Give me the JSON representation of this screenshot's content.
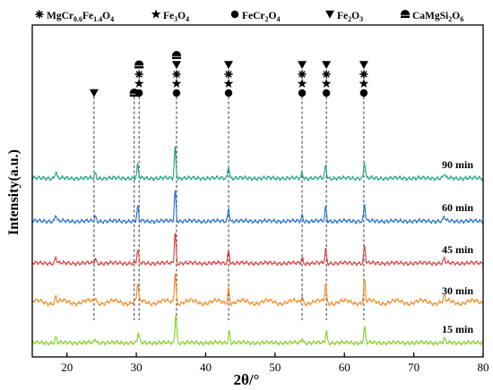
{
  "chart_data": {
    "type": "line",
    "xlabel": "2θ/°",
    "ylabel": "Intensity(a.u.)",
    "xlim": [
      15,
      80
    ],
    "xticks": [
      20,
      30,
      40,
      50,
      60,
      70,
      80
    ],
    "grid": false,
    "y_tick_labels": false,
    "legend": {
      "placement": "top",
      "entries": [
        {
          "symbol": "asterisk",
          "label": "MgCr0.6Fe1.4O4",
          "parts": [
            [
              "MgCr",
              ""
            ],
            [
              "0.6",
              "sub"
            ],
            [
              "Fe",
              ""
            ],
            [
              "1.4",
              "sub"
            ],
            [
              "O",
              ""
            ],
            [
              "4",
              "sub"
            ]
          ]
        },
        {
          "symbol": "star",
          "label": "Fe3O4",
          "parts": [
            [
              "Fe",
              ""
            ],
            [
              "3",
              "sub"
            ],
            [
              "O",
              ""
            ],
            [
              "4",
              "sub"
            ]
          ]
        },
        {
          "symbol": "circle",
          "label": "FeCr2O4",
          "parts": [
            [
              "FeCr",
              ""
            ],
            [
              "2",
              "sub"
            ],
            [
              "O",
              ""
            ],
            [
              "4",
              "sub"
            ]
          ]
        },
        {
          "symbol": "triangle-down",
          "label": "Fe2O3",
          "parts": [
            [
              "Fe",
              ""
            ],
            [
              "2",
              "sub"
            ],
            [
              "O",
              ""
            ],
            [
              "3",
              "sub"
            ]
          ]
        },
        {
          "symbol": "dome",
          "label": "CaMgSi2O6",
          "parts": [
            [
              "CaMgSi",
              ""
            ],
            [
              "2",
              "sub"
            ],
            [
              "O",
              ""
            ],
            [
              "6",
              "sub"
            ]
          ]
        }
      ]
    },
    "series": [
      {
        "name": "15 min",
        "color": "#7ed321",
        "baseline": 0.04,
        "peaks": [
          [
            18.4,
            0.18
          ],
          [
            24.1,
            0.14
          ],
          [
            30.3,
            0.32
          ],
          [
            35.7,
            0.95
          ],
          [
            43.4,
            0.38
          ],
          [
            53.9,
            0.16
          ],
          [
            57.4,
            0.4
          ],
          [
            62.9,
            0.5
          ],
          [
            74.4,
            0.14
          ]
        ]
      },
      {
        "name": "30 min",
        "color": "#f5891f",
        "baseline": 0.16,
        "peaks": [
          [
            18.4,
            0.2
          ],
          [
            24.1,
            0.16
          ],
          [
            30.2,
            0.55
          ],
          [
            35.6,
            1.0
          ],
          [
            43.3,
            0.5
          ],
          [
            53.9,
            0.22
          ],
          [
            57.3,
            0.6
          ],
          [
            62.9,
            0.72
          ],
          [
            74.4,
            0.18
          ]
        ]
      },
      {
        "name": "45 min",
        "color": "#e03b3b",
        "baseline": 0.04,
        "peaks": [
          [
            18.4,
            0.2
          ],
          [
            24.1,
            0.14
          ],
          [
            30.2,
            0.42
          ],
          [
            35.6,
            1.0
          ],
          [
            43.3,
            0.42
          ],
          [
            53.9,
            0.18
          ],
          [
            57.3,
            0.45
          ],
          [
            62.9,
            0.55
          ],
          [
            74.4,
            0.15
          ]
        ]
      },
      {
        "name": "60 min",
        "color": "#1f6fd1",
        "baseline": 0.04,
        "peaks": [
          [
            18.4,
            0.22
          ],
          [
            24.1,
            0.15
          ],
          [
            30.2,
            0.45
          ],
          [
            35.6,
            1.0
          ],
          [
            43.3,
            0.42
          ],
          [
            53.9,
            0.18
          ],
          [
            57.3,
            0.45
          ],
          [
            62.9,
            0.55
          ],
          [
            74.4,
            0.15
          ]
        ]
      },
      {
        "name": "90 min",
        "color": "#1aa384",
        "baseline": 0.04,
        "peaks": [
          [
            18.4,
            0.22
          ],
          [
            24.1,
            0.15
          ],
          [
            30.2,
            0.42
          ],
          [
            35.6,
            1.0
          ],
          [
            43.3,
            0.4
          ],
          [
            53.9,
            0.18
          ],
          [
            57.3,
            0.42
          ],
          [
            62.9,
            0.52
          ],
          [
            74.4,
            0.15
          ]
        ]
      }
    ],
    "reference_lines": [
      {
        "x": 23.9,
        "symbols": [
          "triangle-down"
        ]
      },
      {
        "x": 29.7,
        "symbols": [
          "dome"
        ]
      },
      {
        "x": 30.4,
        "symbols": [
          "dome",
          "asterisk",
          "star",
          "circle"
        ]
      },
      {
        "x": 35.8,
        "symbols": [
          "dome",
          "triangle-down",
          "asterisk",
          "star",
          "circle"
        ]
      },
      {
        "x": 43.3,
        "symbols": [
          "triangle-down",
          "asterisk",
          "star",
          "circle"
        ]
      },
      {
        "x": 53.9,
        "symbols": [
          "triangle-down",
          "asterisk",
          "star",
          "circle"
        ]
      },
      {
        "x": 57.4,
        "symbols": [
          "triangle-down",
          "asterisk",
          "star",
          "circle"
        ]
      },
      {
        "x": 62.8,
        "symbols": [
          "triangle-down",
          "asterisk",
          "star",
          "circle"
        ]
      }
    ]
  }
}
